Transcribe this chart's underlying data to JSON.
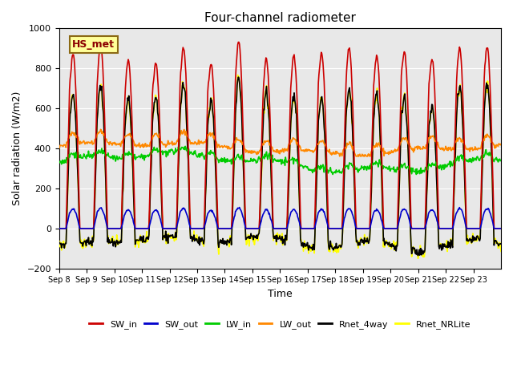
{
  "title": "Four-channel radiometer",
  "xlabel": "Time",
  "ylabel": "Solar radiation (W/m2)",
  "ylim": [
    -200,
    1000
  ],
  "background_color": "#e8e8e8",
  "station_label": "HS_met",
  "x_tick_labels": [
    "Sep 8",
    "Sep 9",
    "Sep 10",
    "Sep 11",
    "Sep 12",
    "Sep 13",
    "Sep 14",
    "Sep 15",
    "Sep 16",
    "Sep 17",
    "Sep 18",
    "Sep 19",
    "Sep 20",
    "Sep 21",
    "Sep 22",
    "Sep 23"
  ],
  "x_tick_positions": [
    0,
    1,
    2,
    3,
    4,
    5,
    6,
    7,
    8,
    9,
    10,
    11,
    12,
    13,
    14,
    15
  ],
  "yticks": [
    -200,
    0,
    200,
    400,
    600,
    800,
    1000
  ],
  "series": {
    "SW_in": {
      "color": "#cc0000",
      "lw": 1.2
    },
    "SW_out": {
      "color": "#0000cc",
      "lw": 1.2
    },
    "LW_in": {
      "color": "#00cc00",
      "lw": 1.2
    },
    "LW_out": {
      "color": "#ff8800",
      "lw": 1.2
    },
    "Rnet_4way": {
      "color": "#000000",
      "lw": 1.2
    },
    "Rnet_NRLite": {
      "color": "#ffff00",
      "lw": 1.2
    }
  },
  "legend_order": [
    "SW_in",
    "SW_out",
    "LW_in",
    "LW_out",
    "Rnet_4way",
    "Rnet_NRLite"
  ]
}
